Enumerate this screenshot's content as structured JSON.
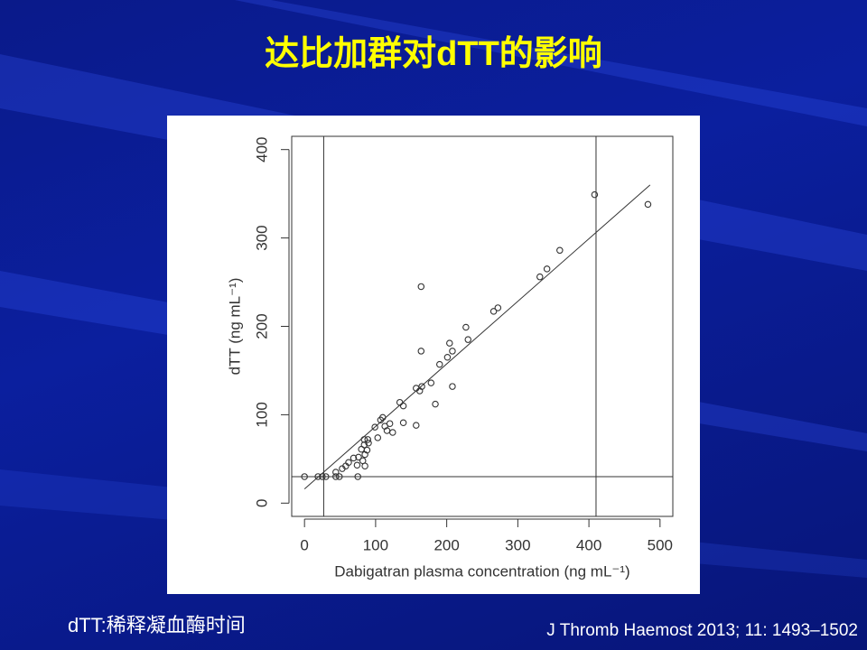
{
  "chart_data": {
    "type": "scatter",
    "title": "达比加群对dTT的影响",
    "x_label": "Dabigatran plasma concentration (ng mL⁻¹)",
    "y_label": "dTT (ng mL⁻¹)",
    "xlim": [
      -18,
      518
    ],
    "ylim": [
      -15,
      415
    ],
    "xticks": [
      0,
      100,
      200,
      300,
      400,
      500
    ],
    "yticks": [
      0,
      100,
      200,
      300,
      400
    ],
    "reference_lines": {
      "x": [
        27,
        410
      ],
      "y": [
        30
      ]
    },
    "fit_line": {
      "x": [
        0,
        486
      ],
      "y": [
        16,
        360
      ]
    },
    "series": [
      {
        "color": "#333333",
        "x": [
          0,
          19,
          25,
          30,
          44,
          49,
          44,
          53,
          58,
          62,
          69,
          74,
          75,
          76,
          82,
          85,
          80,
          84,
          88,
          90,
          84,
          89,
          85,
          99,
          103,
          107,
          110,
          113,
          116,
          120,
          124,
          134,
          139,
          139,
          157,
          162,
          165,
          157,
          164,
          164,
          178,
          184,
          190,
          201,
          204,
          208,
          208,
          227,
          230,
          266,
          272,
          331,
          341,
          359,
          408,
          483
        ],
        "values": [
          30,
          30,
          30,
          30,
          30,
          30,
          35,
          39,
          42,
          46,
          51,
          43,
          30,
          52,
          48,
          42,
          61,
          66,
          60,
          68,
          72,
          72,
          55,
          86,
          74,
          94,
          97,
          87,
          82,
          90,
          80,
          114,
          110,
          91,
          130,
          127,
          132,
          88,
          245,
          172,
          136,
          112,
          157,
          165,
          181,
          172,
          132,
          199,
          185,
          217,
          221,
          256,
          265,
          286,
          349,
          338
        ]
      }
    ]
  },
  "footnote": "dTT:稀释凝血酶时间",
  "citation": "J Thromb Haemost 2013; 11: 1493–1502"
}
